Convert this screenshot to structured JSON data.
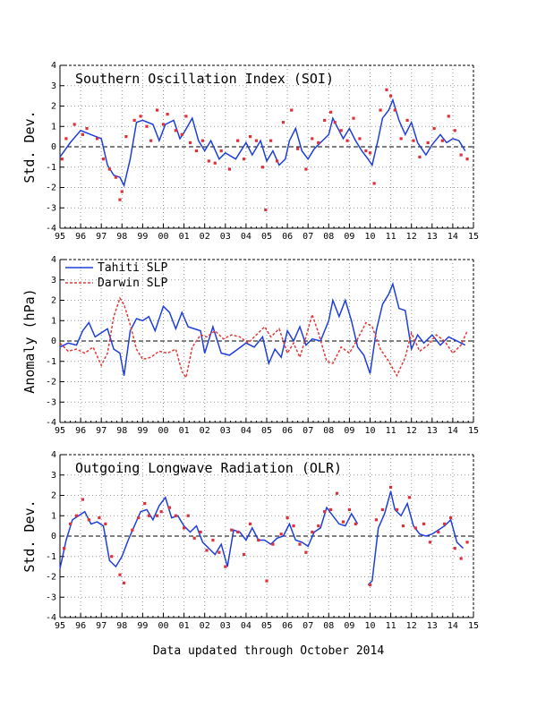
{
  "footer": "Data updated through October 2014",
  "colors": {
    "blue": "#1f3fdd",
    "red": "#e23a3a",
    "dots": "#e0303a",
    "grid": "#9a9a9a"
  },
  "chart_data": [
    {
      "type": "line",
      "title": "Southern Oscillation Index (SOI)",
      "ylabel": "Std. Dev.",
      "xlim": [
        1995,
        2015
      ],
      "ylim": [
        -4,
        4
      ],
      "x_ticks": [
        "95",
        "96",
        "97",
        "98",
        "99",
        "00",
        "01",
        "02",
        "03",
        "04",
        "05",
        "06",
        "07",
        "08",
        "09",
        "10",
        "11",
        "12",
        "13",
        "14",
        "15"
      ],
      "y_ticks": [
        "-4",
        "-3",
        "-2",
        "-1",
        "0",
        "1",
        "2",
        "3",
        "4"
      ],
      "grid": true,
      "series": [
        {
          "style": "line",
          "x": [
            1995.0,
            1995.5,
            1996.0,
            1996.5,
            1997.0,
            1997.3,
            1997.6,
            1997.9,
            1998.1,
            1998.4,
            1998.7,
            1999.0,
            1999.5,
            1999.8,
            2000.1,
            2000.5,
            2000.8,
            2001.0,
            2001.4,
            2001.7,
            2002.0,
            2002.3,
            2002.7,
            2003.0,
            2003.5,
            2004.0,
            2004.3,
            2004.7,
            2005.0,
            2005.3,
            2005.6,
            2005.9,
            2006.1,
            2006.4,
            2006.7,
            2007.0,
            2007.3,
            2007.6,
            2008.0,
            2008.2,
            2008.4,
            2008.7,
            2009.0,
            2009.3,
            2009.6,
            2009.9,
            2010.1,
            2010.4,
            2010.6,
            2010.9,
            2011.1,
            2011.4,
            2011.7,
            2012.0,
            2012.3,
            2012.7,
            2013.0,
            2013.4,
            2013.7,
            2014.0,
            2014.3,
            2014.6
          ],
          "y": [
            -0.5,
            0.2,
            0.8,
            0.6,
            0.4,
            -0.9,
            -1.4,
            -1.5,
            -1.9,
            -0.6,
            1.2,
            1.3,
            1.1,
            0.3,
            1.1,
            1.3,
            0.4,
            0.7,
            1.4,
            0.3,
            -0.2,
            0.3,
            -0.6,
            -0.3,
            -0.6,
            0.2,
            -0.4,
            0.3,
            -0.7,
            -0.2,
            -0.9,
            -0.6,
            0.3,
            0.9,
            -0.2,
            -0.6,
            -0.1,
            0.2,
            0.6,
            1.4,
            1.0,
            0.4,
            0.9,
            0.3,
            -0.2,
            -0.6,
            -0.9,
            0.4,
            1.4,
            1.8,
            2.3,
            1.3,
            0.6,
            1.2,
            0.2,
            -0.4,
            0.1,
            0.6,
            0.2,
            0.4,
            0.3,
            -0.2
          ]
        },
        {
          "style": "dots",
          "x": [
            1995.1,
            1995.3,
            1995.7,
            1996.1,
            1996.3,
            1996.8,
            1997.1,
            1997.4,
            1997.7,
            1997.9,
            1998.0,
            1998.2,
            1998.6,
            1998.9,
            1999.2,
            1999.4,
            1999.7,
            2000.0,
            2000.2,
            2000.6,
            2000.9,
            2001.1,
            2001.3,
            2001.6,
            2001.9,
            2002.2,
            2002.5,
            2002.8,
            2003.2,
            2003.6,
            2003.9,
            2004.2,
            2004.5,
            2004.8,
            2004.95,
            2005.2,
            2005.5,
            2005.8,
            2006.2,
            2006.5,
            2006.9,
            2007.2,
            2007.5,
            2007.8,
            2008.1,
            2008.3,
            2008.6,
            2008.9,
            2009.2,
            2009.5,
            2009.8,
            2010.0,
            2010.2,
            2010.5,
            2010.8,
            2011.0,
            2011.2,
            2011.5,
            2011.8,
            2012.1,
            2012.4,
            2012.8,
            2013.1,
            2013.5,
            2013.8,
            2014.1,
            2014.4,
            2014.7
          ],
          "y": [
            -0.6,
            0.4,
            1.1,
            0.6,
            0.9,
            0.4,
            -0.6,
            -1.1,
            -1.5,
            -2.6,
            -2.2,
            0.5,
            1.3,
            1.5,
            1.0,
            0.3,
            1.8,
            1.1,
            1.6,
            0.8,
            0.6,
            1.5,
            0.2,
            -0.2,
            0.3,
            -0.7,
            -0.8,
            -0.2,
            -1.1,
            0.3,
            -0.6,
            0.5,
            0.3,
            -1.0,
            -3.1,
            0.3,
            -0.7,
            1.2,
            1.8,
            -0.1,
            -1.1,
            0.4,
            0.2,
            1.3,
            1.7,
            1.2,
            0.8,
            0.3,
            1.4,
            0.4,
            -0.2,
            -0.3,
            -1.8,
            1.8,
            2.8,
            2.5,
            1.8,
            0.4,
            1.3,
            0.3,
            -0.5,
            0.2,
            0.9,
            0.3,
            1.5,
            0.8,
            -0.4,
            -0.6
          ]
        }
      ]
    },
    {
      "type": "line",
      "title": "",
      "ylabel": "Anomaly (hPa)",
      "xlim": [
        1995,
        2015
      ],
      "ylim": [
        -4,
        4
      ],
      "x_ticks": [
        "95",
        "96",
        "97",
        "98",
        "99",
        "00",
        "01",
        "02",
        "03",
        "04",
        "05",
        "06",
        "07",
        "08",
        "09",
        "10",
        "11",
        "12",
        "13",
        "14",
        "15"
      ],
      "y_ticks": [
        "-4",
        "-3",
        "-2",
        "-1",
        "0",
        "1",
        "2",
        "3",
        "4"
      ],
      "grid": true,
      "legend_placement": "top-left",
      "series": [
        {
          "name": "Tahiti SLP",
          "style": "line",
          "x": [
            1995.0,
            1995.4,
            1995.8,
            1996.1,
            1996.4,
            1996.7,
            1997.0,
            1997.3,
            1997.6,
            1997.9,
            1998.1,
            1998.4,
            1998.7,
            1999.0,
            1999.3,
            1999.6,
            2000.0,
            2000.3,
            2000.6,
            2000.9,
            2001.2,
            2001.5,
            2001.8,
            2002.0,
            2002.4,
            2002.8,
            2003.2,
            2003.6,
            2004.0,
            2004.4,
            2004.8,
            2005.1,
            2005.4,
            2005.7,
            2006.0,
            2006.3,
            2006.6,
            2006.9,
            2007.2,
            2007.6,
            2008.0,
            2008.2,
            2008.5,
            2008.8,
            2009.1,
            2009.4,
            2009.7,
            2010.0,
            2010.3,
            2010.6,
            2010.9,
            2011.1,
            2011.4,
            2011.7,
            2012.0,
            2012.3,
            2012.6,
            2013.0,
            2013.4,
            2013.8,
            2014.2,
            2014.6
          ],
          "y": [
            -0.3,
            -0.1,
            -0.2,
            0.5,
            0.9,
            0.2,
            0.4,
            0.6,
            -0.4,
            -0.6,
            -1.7,
            0.5,
            1.1,
            1.0,
            1.2,
            0.5,
            1.7,
            1.4,
            0.6,
            1.4,
            0.7,
            0.6,
            0.5,
            -0.6,
            0.7,
            -0.6,
            -0.7,
            -0.4,
            -0.1,
            -0.3,
            0.2,
            -1.1,
            -0.4,
            -0.8,
            0.5,
            0.0,
            0.7,
            -0.2,
            0.1,
            0.0,
            1.0,
            2.0,
            1.2,
            2.0,
            1.0,
            -0.3,
            -0.7,
            -1.6,
            0.5,
            1.8,
            2.3,
            2.8,
            1.6,
            1.5,
            -0.4,
            0.3,
            -0.1,
            0.3,
            -0.2,
            0.2,
            0.0,
            -0.2
          ]
        },
        {
          "name": "Darwin SLP",
          "style": "dashed",
          "x": [
            1995.0,
            1995.4,
            1995.8,
            1996.2,
            1996.6,
            1997.0,
            1997.3,
            1997.6,
            1997.9,
            1998.1,
            1998.4,
            1998.7,
            1999.0,
            1999.4,
            1999.8,
            2000.2,
            2000.6,
            2000.9,
            2001.1,
            2001.4,
            2001.8,
            2002.1,
            2002.5,
            2002.9,
            2003.3,
            2003.7,
            2004.1,
            2004.5,
            2004.9,
            2005.2,
            2005.6,
            2006.0,
            2006.3,
            2006.6,
            2006.9,
            2007.2,
            2007.5,
            2007.9,
            2008.2,
            2008.6,
            2009.0,
            2009.4,
            2009.8,
            2010.1,
            2010.5,
            2010.9,
            2011.3,
            2011.7,
            2012.0,
            2012.4,
            2012.8,
            2013.2,
            2013.6,
            2014.0,
            2014.4,
            2014.7
          ],
          "y": [
            -0.1,
            -0.5,
            -0.4,
            -0.6,
            -0.3,
            -1.2,
            -0.6,
            1.2,
            2.1,
            1.8,
            0.8,
            -0.4,
            -0.9,
            -0.8,
            -0.5,
            -0.6,
            -0.4,
            -1.5,
            -1.8,
            -0.3,
            0.3,
            0.2,
            0.5,
            0.1,
            0.3,
            0.2,
            -0.1,
            0.3,
            0.7,
            0.2,
            0.6,
            -0.6,
            -0.1,
            -0.8,
            0.2,
            1.3,
            0.4,
            -1.0,
            -1.1,
            -0.3,
            -0.6,
            0.1,
            0.9,
            0.7,
            -0.4,
            -1.0,
            -1.7,
            -0.8,
            0.4,
            -0.5,
            -0.2,
            0.3,
            0.0,
            -0.6,
            -0.2,
            0.5
          ]
        }
      ]
    },
    {
      "type": "line",
      "title": "Outgoing Longwave Radiation (OLR)",
      "ylabel": "Std. Dev.",
      "xlim": [
        1995,
        2015
      ],
      "ylim": [
        -4,
        4
      ],
      "x_ticks": [
        "95",
        "96",
        "97",
        "98",
        "99",
        "00",
        "01",
        "02",
        "03",
        "04",
        "05",
        "06",
        "07",
        "08",
        "09",
        "10",
        "11",
        "12",
        "13",
        "14",
        "15"
      ],
      "y_ticks": [
        "-4",
        "-3",
        "-2",
        "-1",
        "0",
        "1",
        "2",
        "3",
        "4"
      ],
      "grid": true,
      "series": [
        {
          "style": "line",
          "x": [
            1995.0,
            1995.3,
            1995.6,
            1995.9,
            1996.2,
            1996.5,
            1996.8,
            1997.1,
            1997.4,
            1997.7,
            1998.0,
            1998.3,
            1998.6,
            1998.9,
            1999.2,
            1999.5,
            1999.8,
            2000.1,
            2000.4,
            2000.7,
            2001.0,
            2001.3,
            2001.6,
            2001.9,
            2002.2,
            2002.5,
            2002.8,
            2003.1,
            2003.4,
            2003.7,
            2004.0,
            2004.3,
            2004.6,
            2004.9,
            2005.2,
            2005.5,
            2005.8,
            2006.1,
            2006.4,
            2006.7,
            2007.0,
            2007.3,
            2007.6,
            2007.9,
            2008.2,
            2008.5,
            2008.8,
            2009.1,
            2009.4
          ],
          "y": [
            -1.6,
            -0.2,
            0.8,
            1.0,
            1.2,
            0.6,
            0.7,
            0.5,
            -1.2,
            -1.5,
            -1.0,
            -0.2,
            0.5,
            1.2,
            1.3,
            0.8,
            1.5,
            1.9,
            0.9,
            1.0,
            0.5,
            0.2,
            0.5,
            -0.3,
            -0.6,
            -0.9,
            -0.4,
            -1.5,
            0.3,
            0.2,
            -0.2,
            0.4,
            -0.2,
            -0.2,
            -0.4,
            -0.1,
            0.0,
            0.6,
            -0.2,
            -0.3,
            -0.5,
            0.2,
            0.4,
            1.4,
            1.0,
            0.6,
            0.5,
            1.1,
            0.6
          ]
        },
        {
          "style": "line",
          "x": [
            2009.9,
            2010.1,
            2010.4,
            2010.7,
            2011.0,
            2011.2,
            2011.5,
            2011.8,
            2012.1,
            2012.4,
            2012.7,
            2013.0,
            2013.3,
            2013.6,
            2013.9,
            2014.2,
            2014.5
          ],
          "y": [
            -2.4,
            -2.2,
            0.4,
            1.1,
            2.2,
            1.3,
            1.0,
            1.6,
            0.5,
            0.1,
            0.0,
            0.1,
            0.3,
            0.5,
            0.8,
            -0.3,
            -0.6
          ]
        },
        {
          "style": "dots",
          "x": [
            1995.2,
            1995.5,
            1995.8,
            1996.1,
            1996.4,
            1996.9,
            1997.2,
            1997.5,
            1997.9,
            1998.1,
            1998.5,
            1998.8,
            1999.1,
            1999.3,
            1999.7,
            1999.9,
            2000.3,
            2000.6,
            2001.0,
            2001.2,
            2001.5,
            2001.8,
            2002.1,
            2002.4,
            2002.7,
            2003.0,
            2003.3,
            2003.6,
            2003.9,
            2004.2,
            2004.6,
            2005.0,
            2005.3,
            2005.7,
            2006.0,
            2006.3,
            2006.6,
            2006.9,
            2007.2,
            2007.5,
            2007.8,
            2008.1,
            2008.4,
            2008.7,
            2009.0,
            2009.3,
            2010.0,
            2010.3,
            2010.6,
            2011.0,
            2011.3,
            2011.6,
            2011.9,
            2012.2,
            2012.6,
            2012.9,
            2013.3,
            2013.6,
            2013.9,
            2014.1,
            2014.4,
            2014.7
          ],
          "y": [
            -0.6,
            0.6,
            1.0,
            1.8,
            0.8,
            0.9,
            0.6,
            -1.0,
            -1.9,
            -2.3,
            0.3,
            0.9,
            1.6,
            1.0,
            1.0,
            1.2,
            1.4,
            1.0,
            0.4,
            1.0,
            -0.1,
            0.2,
            -0.7,
            -0.2,
            -0.8,
            -1.5,
            0.3,
            0.2,
            -0.9,
            0.6,
            -0.2,
            -2.2,
            -0.4,
            0.1,
            0.9,
            0.5,
            -0.4,
            -0.8,
            0.2,
            0.5,
            1.2,
            1.3,
            2.1,
            0.7,
            1.3,
            0.6,
            -2.4,
            0.8,
            1.3,
            2.4,
            1.3,
            0.5,
            1.9,
            0.4,
            0.6,
            -0.3,
            0.2,
            0.6,
            0.9,
            -0.6,
            -1.1,
            -0.3
          ]
        }
      ]
    }
  ]
}
